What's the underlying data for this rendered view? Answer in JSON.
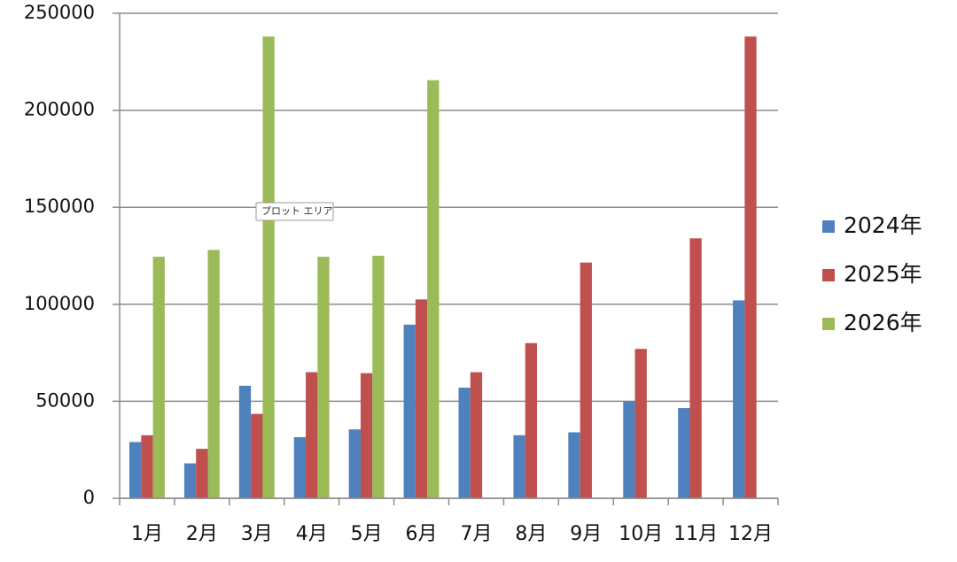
{
  "chart_data": {
    "type": "bar",
    "categories": [
      "1月",
      "2月",
      "3月",
      "4月",
      "5月",
      "6月",
      "7月",
      "8月",
      "9月",
      "10月",
      "11月",
      "12月"
    ],
    "series": [
      {
        "name": "2024年",
        "color": "#4f81bd",
        "values": [
          29000,
          18000,
          58000,
          31500,
          35500,
          89500,
          57000,
          32500,
          34000,
          50000,
          46500,
          102000
        ]
      },
      {
        "name": "2025年",
        "color": "#c0504d",
        "values": [
          32500,
          25500,
          43500,
          65000,
          64500,
          102500,
          65000,
          80000,
          121500,
          77000,
          134000,
          238000
        ]
      },
      {
        "name": "2026年",
        "color": "#9bbb59",
        "values": [
          124500,
          128000,
          238000,
          124500,
          125000,
          215500,
          null,
          null,
          null,
          null,
          null,
          null
        ]
      }
    ],
    "ylim": [
      0,
      250000
    ],
    "yticks": [
      0,
      50000,
      100000,
      150000,
      200000,
      250000
    ],
    "grid": true,
    "legend": "right",
    "tooltip": "プロット エリア"
  }
}
